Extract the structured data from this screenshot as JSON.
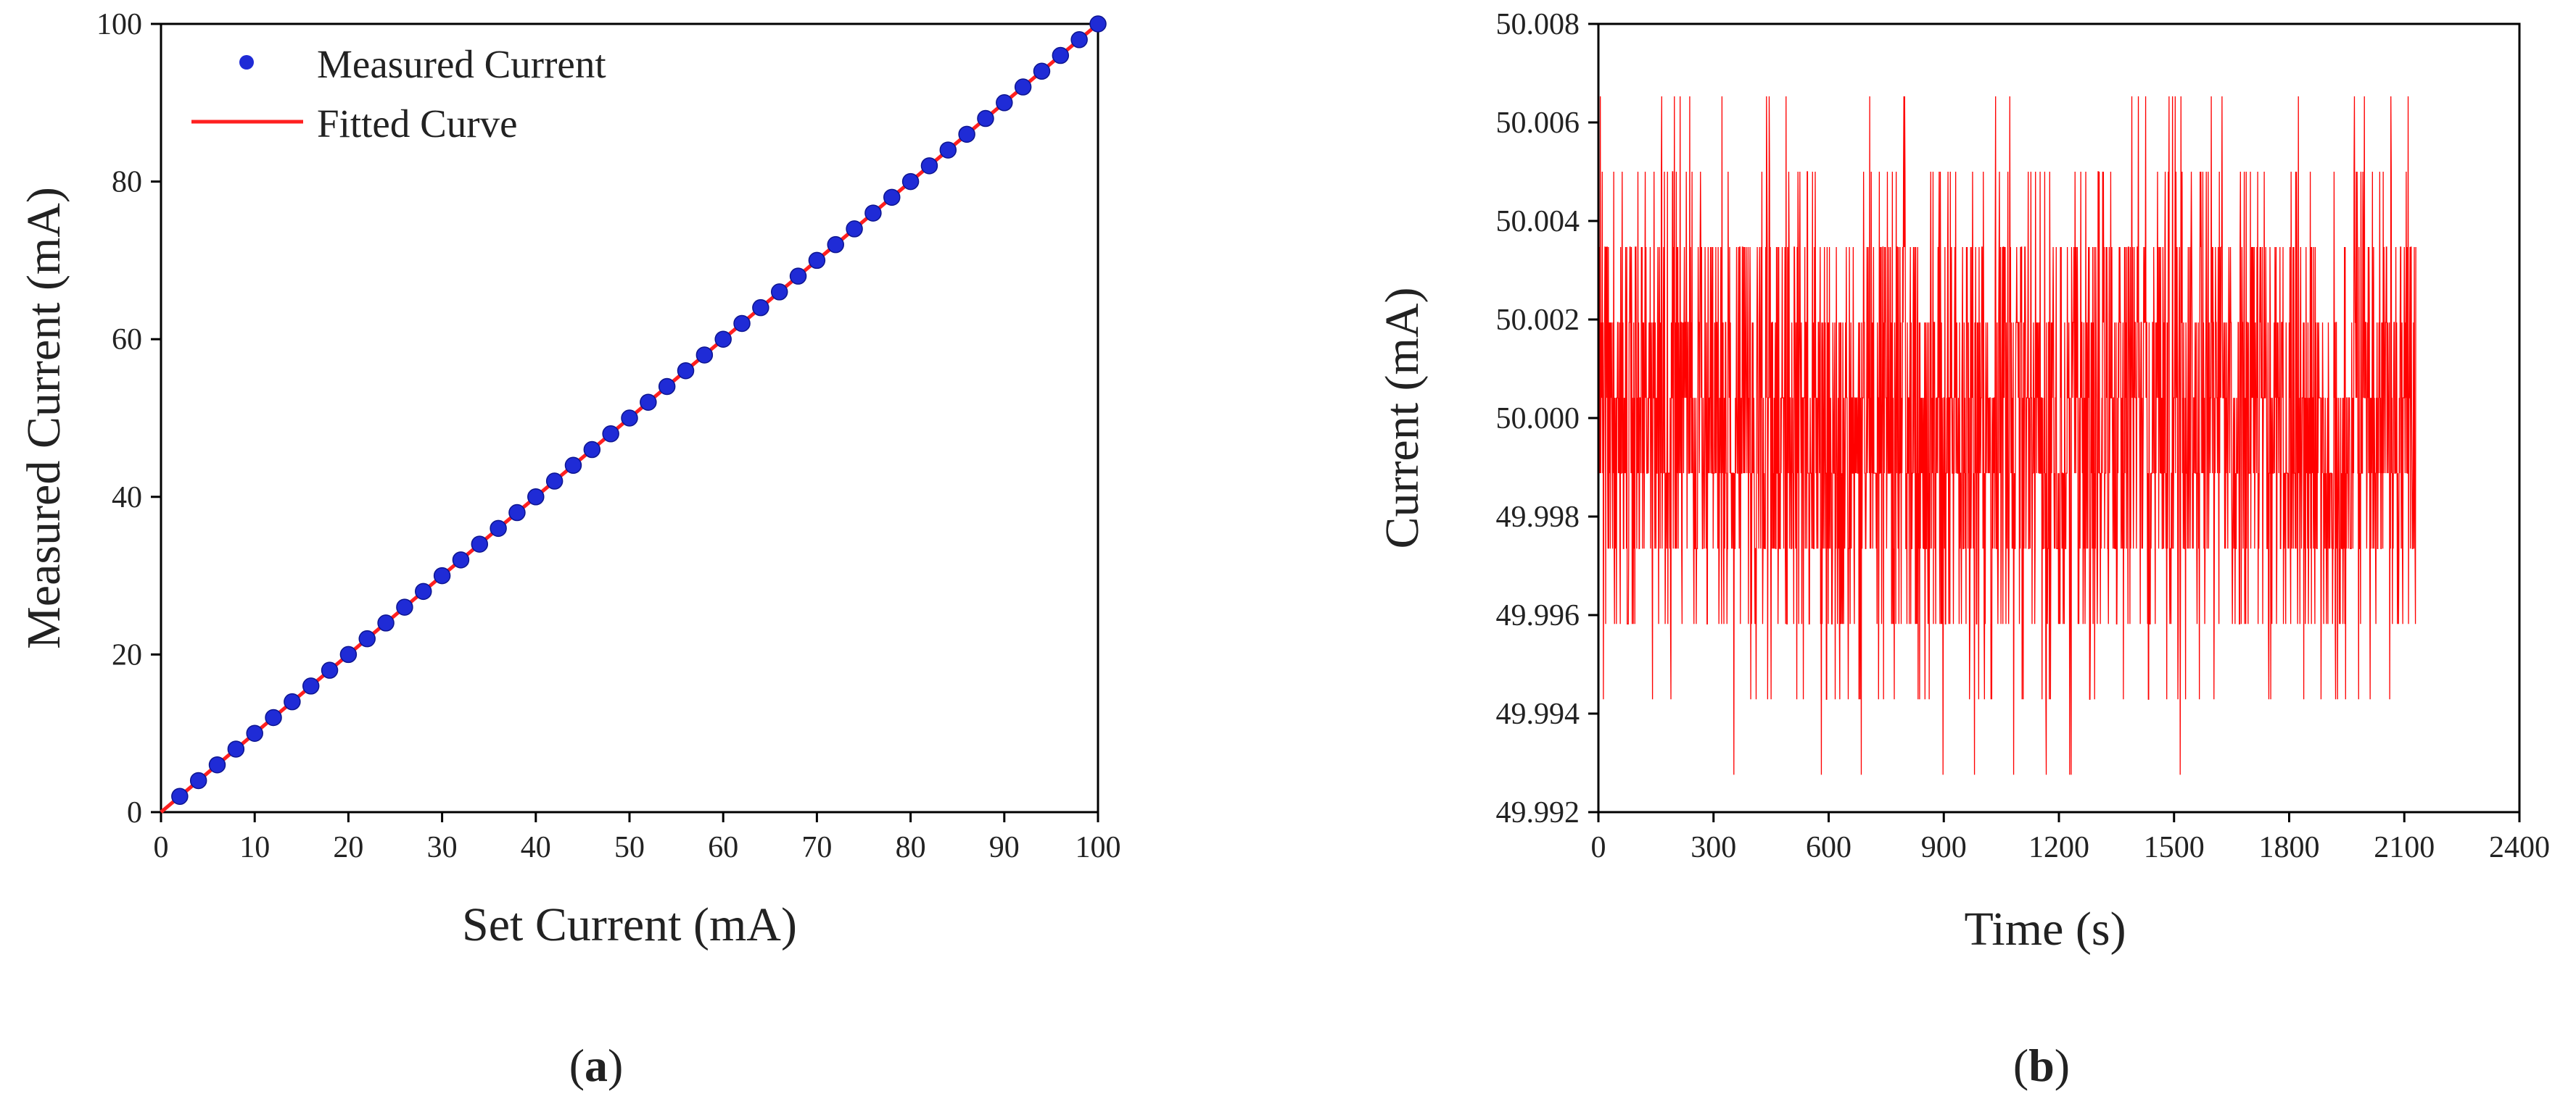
{
  "chart_data": [
    {
      "id": "a",
      "type": "scatter",
      "panel_label": "a",
      "title": "",
      "xlabel": "Set Current (mA)",
      "ylabel": "Measured Current (mA)",
      "xlim": [
        0,
        100
      ],
      "ylim": [
        0,
        100
      ],
      "xticks": [
        0,
        10,
        20,
        30,
        40,
        50,
        60,
        70,
        80,
        90,
        100
      ],
      "yticks": [
        0,
        20,
        40,
        60,
        80,
        100
      ],
      "grid": false,
      "legend_position": "top-left",
      "legend": [
        {
          "label": "Measured Current",
          "marker": "circle",
          "color": "#1f2bd6"
        },
        {
          "label": "Fitted Curve",
          "marker": "line",
          "color": "#ff2020"
        }
      ],
      "series": [
        {
          "name": "Measured Current",
          "kind": "points",
          "color": "#1f2bd6",
          "x": [
            2,
            4,
            6,
            8,
            10,
            12,
            14,
            16,
            18,
            20,
            22,
            24,
            26,
            28,
            30,
            32,
            34,
            36,
            38,
            40,
            42,
            44,
            46,
            48,
            50,
            52,
            54,
            56,
            58,
            60,
            62,
            64,
            66,
            68,
            70,
            72,
            74,
            76,
            78,
            80,
            82,
            84,
            86,
            88,
            90,
            92,
            94,
            96,
            98,
            100
          ],
          "y": [
            2,
            4,
            6,
            8,
            10,
            12,
            14,
            16,
            18,
            20,
            22,
            24,
            26,
            28,
            30,
            32,
            34,
            36,
            38,
            40,
            42,
            44,
            46,
            48,
            50,
            52,
            54,
            56,
            58,
            60,
            62,
            64,
            66,
            68,
            70,
            72,
            74,
            76,
            78,
            80,
            82,
            84,
            86,
            88,
            90,
            92,
            94,
            96,
            98,
            100
          ]
        },
        {
          "name": "Fitted Curve",
          "kind": "line",
          "color": "#ff2020",
          "x": [
            0,
            100
          ],
          "y": [
            0,
            100
          ]
        }
      ]
    },
    {
      "id": "b",
      "type": "line",
      "panel_label": "b",
      "title": "",
      "xlabel": "Time (s)",
      "ylabel": "Current (mA)",
      "xlim": [
        0,
        2400
      ],
      "ylim": [
        49.992,
        50.008
      ],
      "xticks": [
        0,
        300,
        600,
        900,
        1200,
        1500,
        1800,
        2100,
        2400
      ],
      "yticks": [
        49.992,
        49.994,
        49.996,
        49.998,
        50.0,
        50.002,
        50.004,
        50.006,
        50.008
      ],
      "ytick_labels": [
        "49.992",
        "49.994",
        "49.996",
        "49.998",
        "50.000",
        "50.002",
        "50.004",
        "50.006",
        "50.008"
      ],
      "grid": false,
      "series": [
        {
          "name": "Current",
          "color": "#ff0000",
          "time_start": 0,
          "time_end": 2130,
          "sample_interval_s": 1,
          "levels": [
            49.99276,
            49.99429,
            49.99582,
            49.99735,
            49.99888,
            50.00041,
            50.00194,
            50.00347,
            50.005,
            50.00653
          ],
          "level_probabilities": [
            0.006,
            0.025,
            0.07,
            0.16,
            0.22,
            0.2,
            0.16,
            0.1,
            0.045,
            0.014
          ]
        }
      ]
    }
  ]
}
